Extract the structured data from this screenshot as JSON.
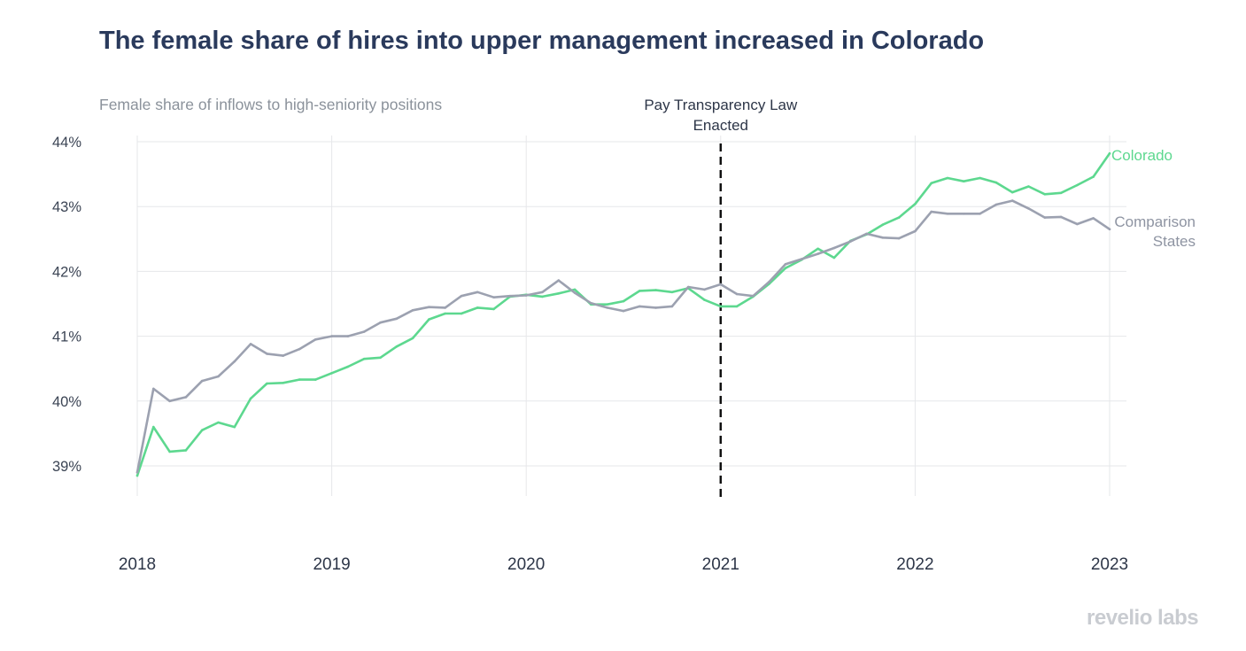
{
  "title": "The female share of hires into upper management increased in Colorado",
  "subtitle": "Female share of inflows to high-seniority positions",
  "brand": "revelio labs",
  "chart_data": {
    "type": "line",
    "title": "The female share of hires into upper management increased in Colorado",
    "subtitle": "Female share of inflows to high-seniority positions",
    "xlabel": "",
    "ylabel": "",
    "x_range": [
      2018,
      2023
    ],
    "ylim": [
      38.6,
      44.1
    ],
    "x_ticks": [
      "2018",
      "2019",
      "2020",
      "2021",
      "2022",
      "2023"
    ],
    "y_ticks": [
      {
        "value": 39,
        "label": "39%"
      },
      {
        "value": 40,
        "label": "40%"
      },
      {
        "value": 41,
        "label": "41%"
      },
      {
        "value": 42,
        "label": "42%"
      },
      {
        "value": 43,
        "label": "43%"
      },
      {
        "value": 44,
        "label": "44%"
      }
    ],
    "grid": true,
    "legend": "direct labels at line ends",
    "annotation": {
      "x": 2021,
      "lines": [
        "Pay Transparency Law",
        "Enacted"
      ],
      "style": "dashed vertical line"
    },
    "series": [
      {
        "name": "Colorado",
        "color": "#5dd88f",
        "label_lines": [
          "Colorado"
        ],
        "values": [
          38.85,
          39.6,
          39.22,
          39.24,
          39.55,
          39.67,
          39.6,
          40.04,
          40.27,
          40.28,
          40.33,
          40.33,
          40.43,
          40.53,
          40.65,
          40.67,
          40.84,
          40.97,
          41.26,
          41.35,
          41.35,
          41.44,
          41.42,
          41.61,
          41.64,
          41.61,
          41.66,
          41.72,
          41.49,
          41.49,
          41.54,
          41.7,
          41.71,
          41.68,
          41.74,
          41.56,
          41.46,
          41.46,
          41.61,
          41.81,
          42.05,
          42.18,
          42.35,
          42.21,
          42.47,
          42.57,
          42.72,
          42.83,
          43.04,
          43.36,
          43.44,
          43.39,
          43.44,
          43.37,
          43.22,
          43.31,
          43.19,
          43.21,
          43.33,
          43.46,
          43.82
        ]
      },
      {
        "name": "Comparison States",
        "color": "#9ca1b0",
        "label_lines": [
          "Comparison",
          "States"
        ],
        "values": [
          38.9,
          40.19,
          40.0,
          40.06,
          40.31,
          40.38,
          40.61,
          40.88,
          40.73,
          40.7,
          40.8,
          40.95,
          41.0,
          41.0,
          41.07,
          41.21,
          41.27,
          41.4,
          41.45,
          41.44,
          41.62,
          41.68,
          41.6,
          41.62,
          41.63,
          41.68,
          41.86,
          41.67,
          41.51,
          41.44,
          41.39,
          41.46,
          41.44,
          41.46,
          41.76,
          41.72,
          41.8,
          41.65,
          41.62,
          41.84,
          42.11,
          42.19,
          42.27,
          42.36,
          42.46,
          42.58,
          42.52,
          42.51,
          42.62,
          42.92,
          42.89,
          42.89,
          42.89,
          43.03,
          43.09,
          42.97,
          42.83,
          42.84,
          42.73,
          42.82,
          42.65
        ]
      }
    ]
  }
}
